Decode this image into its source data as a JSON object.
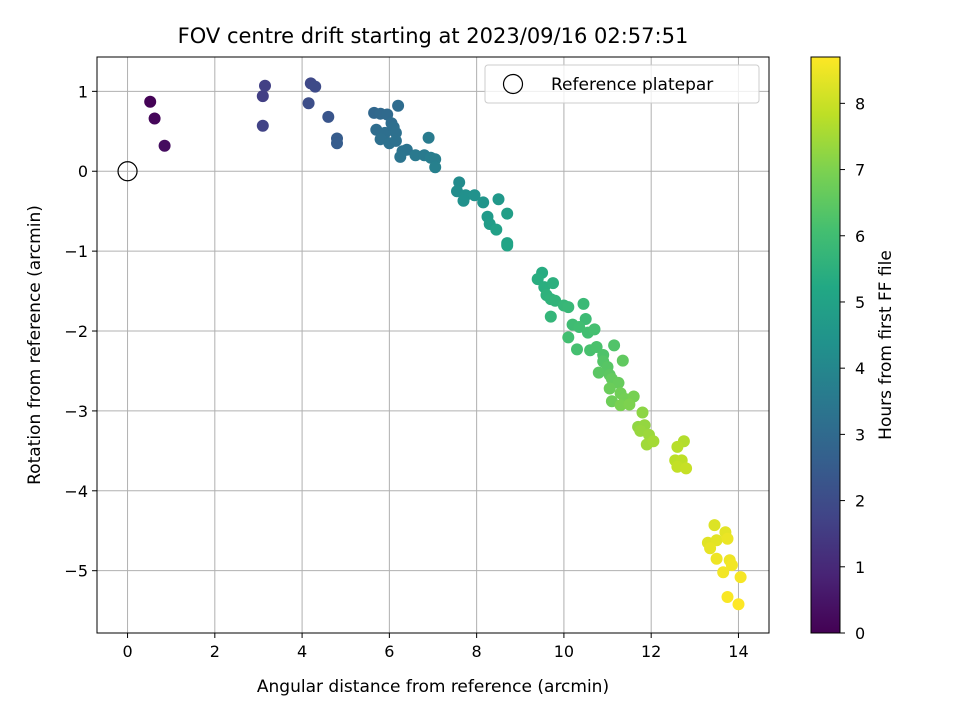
{
  "chart_data": {
    "type": "scatter",
    "title": "FOV centre drift starting at 2023/09/16 02:57:51",
    "xlabel": "Angular distance from reference (arcmin)",
    "ylabel": "Rotation from reference (arcmin)",
    "xlim": [
      -0.7,
      14.7
    ],
    "ylim": [
      -5.78,
      1.43
    ],
    "xticks": [
      0,
      2,
      4,
      6,
      8,
      10,
      12,
      14
    ],
    "yticks": [
      1,
      0,
      -1,
      -2,
      -3,
      -4,
      -5
    ],
    "xtick_labels": [
      "0",
      "2",
      "4",
      "6",
      "8",
      "10",
      "12",
      "14"
    ],
    "ytick_labels": [
      "1",
      "0",
      "−1",
      "−2",
      "−3",
      "−4",
      "−5"
    ],
    "grid": true,
    "colormap": "viridis",
    "colorbar": {
      "label": "Hours from first FF file",
      "range": [
        0,
        8.7
      ],
      "ticks": [
        0,
        1,
        2,
        3,
        4,
        5,
        6,
        7,
        8
      ],
      "tick_labels": [
        "0",
        "1",
        "2",
        "3",
        "4",
        "5",
        "6",
        "7",
        "8"
      ]
    },
    "legend": {
      "position": "top-right",
      "entries": [
        "Reference platepar"
      ]
    },
    "reference_point": {
      "x": 0,
      "y": 0
    },
    "series": [
      {
        "points": [
          [
            0.52,
            0.87,
            0.05
          ],
          [
            0.62,
            0.66,
            0.15
          ],
          [
            0.85,
            0.32,
            0.3
          ],
          [
            3.1,
            0.94,
            1.6
          ],
          [
            3.15,
            1.07,
            1.65
          ],
          [
            3.1,
            0.57,
            1.7
          ],
          [
            4.2,
            1.1,
            1.9
          ],
          [
            4.3,
            1.06,
            1.95
          ],
          [
            4.15,
            0.85,
            2.05
          ],
          [
            4.6,
            0.68,
            2.3
          ],
          [
            4.8,
            0.41,
            2.5
          ],
          [
            4.8,
            0.35,
            2.55
          ],
          [
            5.65,
            0.73,
            2.9
          ],
          [
            5.8,
            0.72,
            2.95
          ],
          [
            5.95,
            0.71,
            3.0
          ],
          [
            6.2,
            0.82,
            3.05
          ],
          [
            6.05,
            0.6,
            3.1
          ],
          [
            5.7,
            0.52,
            3.1
          ],
          [
            5.9,
            0.48,
            3.15
          ],
          [
            6.1,
            0.55,
            3.15
          ],
          [
            6.15,
            0.48,
            3.2
          ],
          [
            5.8,
            0.4,
            3.2
          ],
          [
            6.0,
            0.35,
            3.25
          ],
          [
            6.15,
            0.38,
            3.25
          ],
          [
            6.3,
            0.25,
            3.3
          ],
          [
            6.4,
            0.27,
            3.3
          ],
          [
            6.25,
            0.18,
            3.35
          ],
          [
            6.6,
            0.2,
            3.5
          ],
          [
            6.8,
            0.2,
            3.55
          ],
          [
            6.9,
            0.42,
            3.6
          ],
          [
            6.95,
            0.17,
            3.65
          ],
          [
            7.05,
            0.15,
            3.7
          ],
          [
            7.05,
            0.05,
            3.75
          ],
          [
            7.6,
            -0.14,
            4.15
          ],
          [
            7.55,
            -0.25,
            4.2
          ],
          [
            7.75,
            -0.3,
            4.3
          ],
          [
            7.7,
            -0.37,
            4.35
          ],
          [
            7.95,
            -0.3,
            4.4
          ],
          [
            8.15,
            -0.39,
            4.5
          ],
          [
            8.5,
            -0.35,
            4.6
          ],
          [
            8.25,
            -0.57,
            4.7
          ],
          [
            8.3,
            -0.66,
            4.75
          ],
          [
            8.7,
            -0.53,
            4.85
          ],
          [
            8.45,
            -0.73,
            4.9
          ],
          [
            8.7,
            -0.9,
            5.0
          ],
          [
            8.7,
            -0.93,
            5.05
          ],
          [
            9.5,
            -1.27,
            5.35
          ],
          [
            9.4,
            -1.35,
            5.4
          ],
          [
            9.55,
            -1.45,
            5.45
          ],
          [
            9.75,
            -1.4,
            5.5
          ],
          [
            9.6,
            -1.55,
            5.55
          ],
          [
            9.7,
            -1.6,
            5.6
          ],
          [
            9.8,
            -1.62,
            5.65
          ],
          [
            9.7,
            -1.82,
            5.7
          ],
          [
            10.0,
            -1.68,
            5.75
          ],
          [
            10.1,
            -1.7,
            5.8
          ],
          [
            10.45,
            -1.66,
            5.85
          ],
          [
            10.5,
            -1.85,
            5.9
          ],
          [
            10.2,
            -1.92,
            5.95
          ],
          [
            10.35,
            -1.95,
            6.0
          ],
          [
            10.55,
            -2.02,
            6.05
          ],
          [
            10.1,
            -2.08,
            6.05
          ],
          [
            10.3,
            -2.23,
            6.1
          ],
          [
            10.7,
            -1.98,
            6.1
          ],
          [
            10.6,
            -2.24,
            6.15
          ],
          [
            10.75,
            -2.2,
            6.2
          ],
          [
            10.9,
            -2.3,
            6.25
          ],
          [
            11.15,
            -2.18,
            6.3
          ],
          [
            10.9,
            -2.38,
            6.35
          ],
          [
            11.0,
            -2.45,
            6.4
          ],
          [
            10.8,
            -2.52,
            6.45
          ],
          [
            11.05,
            -2.55,
            6.5
          ],
          [
            11.35,
            -2.37,
            6.55
          ],
          [
            11.1,
            -2.6,
            6.6
          ],
          [
            11.25,
            -2.65,
            6.65
          ],
          [
            11.05,
            -2.72,
            6.7
          ],
          [
            11.1,
            -2.88,
            6.75
          ],
          [
            11.3,
            -2.78,
            6.8
          ],
          [
            11.4,
            -2.85,
            6.85
          ],
          [
            11.6,
            -2.82,
            6.9
          ],
          [
            11.3,
            -2.93,
            6.95
          ],
          [
            11.5,
            -2.92,
            7.0
          ],
          [
            11.8,
            -3.02,
            7.2
          ],
          [
            11.7,
            -3.2,
            7.25
          ],
          [
            11.85,
            -3.18,
            7.3
          ],
          [
            11.75,
            -3.25,
            7.35
          ],
          [
            11.95,
            -3.3,
            7.4
          ],
          [
            11.9,
            -3.42,
            7.45
          ],
          [
            12.05,
            -3.38,
            7.5
          ],
          [
            12.75,
            -3.38,
            7.7
          ],
          [
            12.6,
            -3.45,
            7.75
          ],
          [
            12.55,
            -3.62,
            7.8
          ],
          [
            12.7,
            -3.62,
            7.85
          ],
          [
            12.6,
            -3.7,
            7.9
          ],
          [
            12.8,
            -3.72,
            7.95
          ],
          [
            13.45,
            -4.43,
            8.25
          ],
          [
            13.3,
            -4.65,
            8.3
          ],
          [
            13.5,
            -4.62,
            8.35
          ],
          [
            13.7,
            -4.52,
            8.35
          ],
          [
            13.35,
            -4.72,
            8.4
          ],
          [
            13.75,
            -4.6,
            8.45
          ],
          [
            13.5,
            -4.85,
            8.5
          ],
          [
            13.8,
            -4.87,
            8.5
          ],
          [
            13.85,
            -4.93,
            8.55
          ],
          [
            13.65,
            -5.02,
            8.55
          ],
          [
            14.05,
            -5.08,
            8.6
          ],
          [
            13.75,
            -5.33,
            8.65
          ],
          [
            14.0,
            -5.42,
            8.7
          ]
        ]
      }
    ]
  }
}
